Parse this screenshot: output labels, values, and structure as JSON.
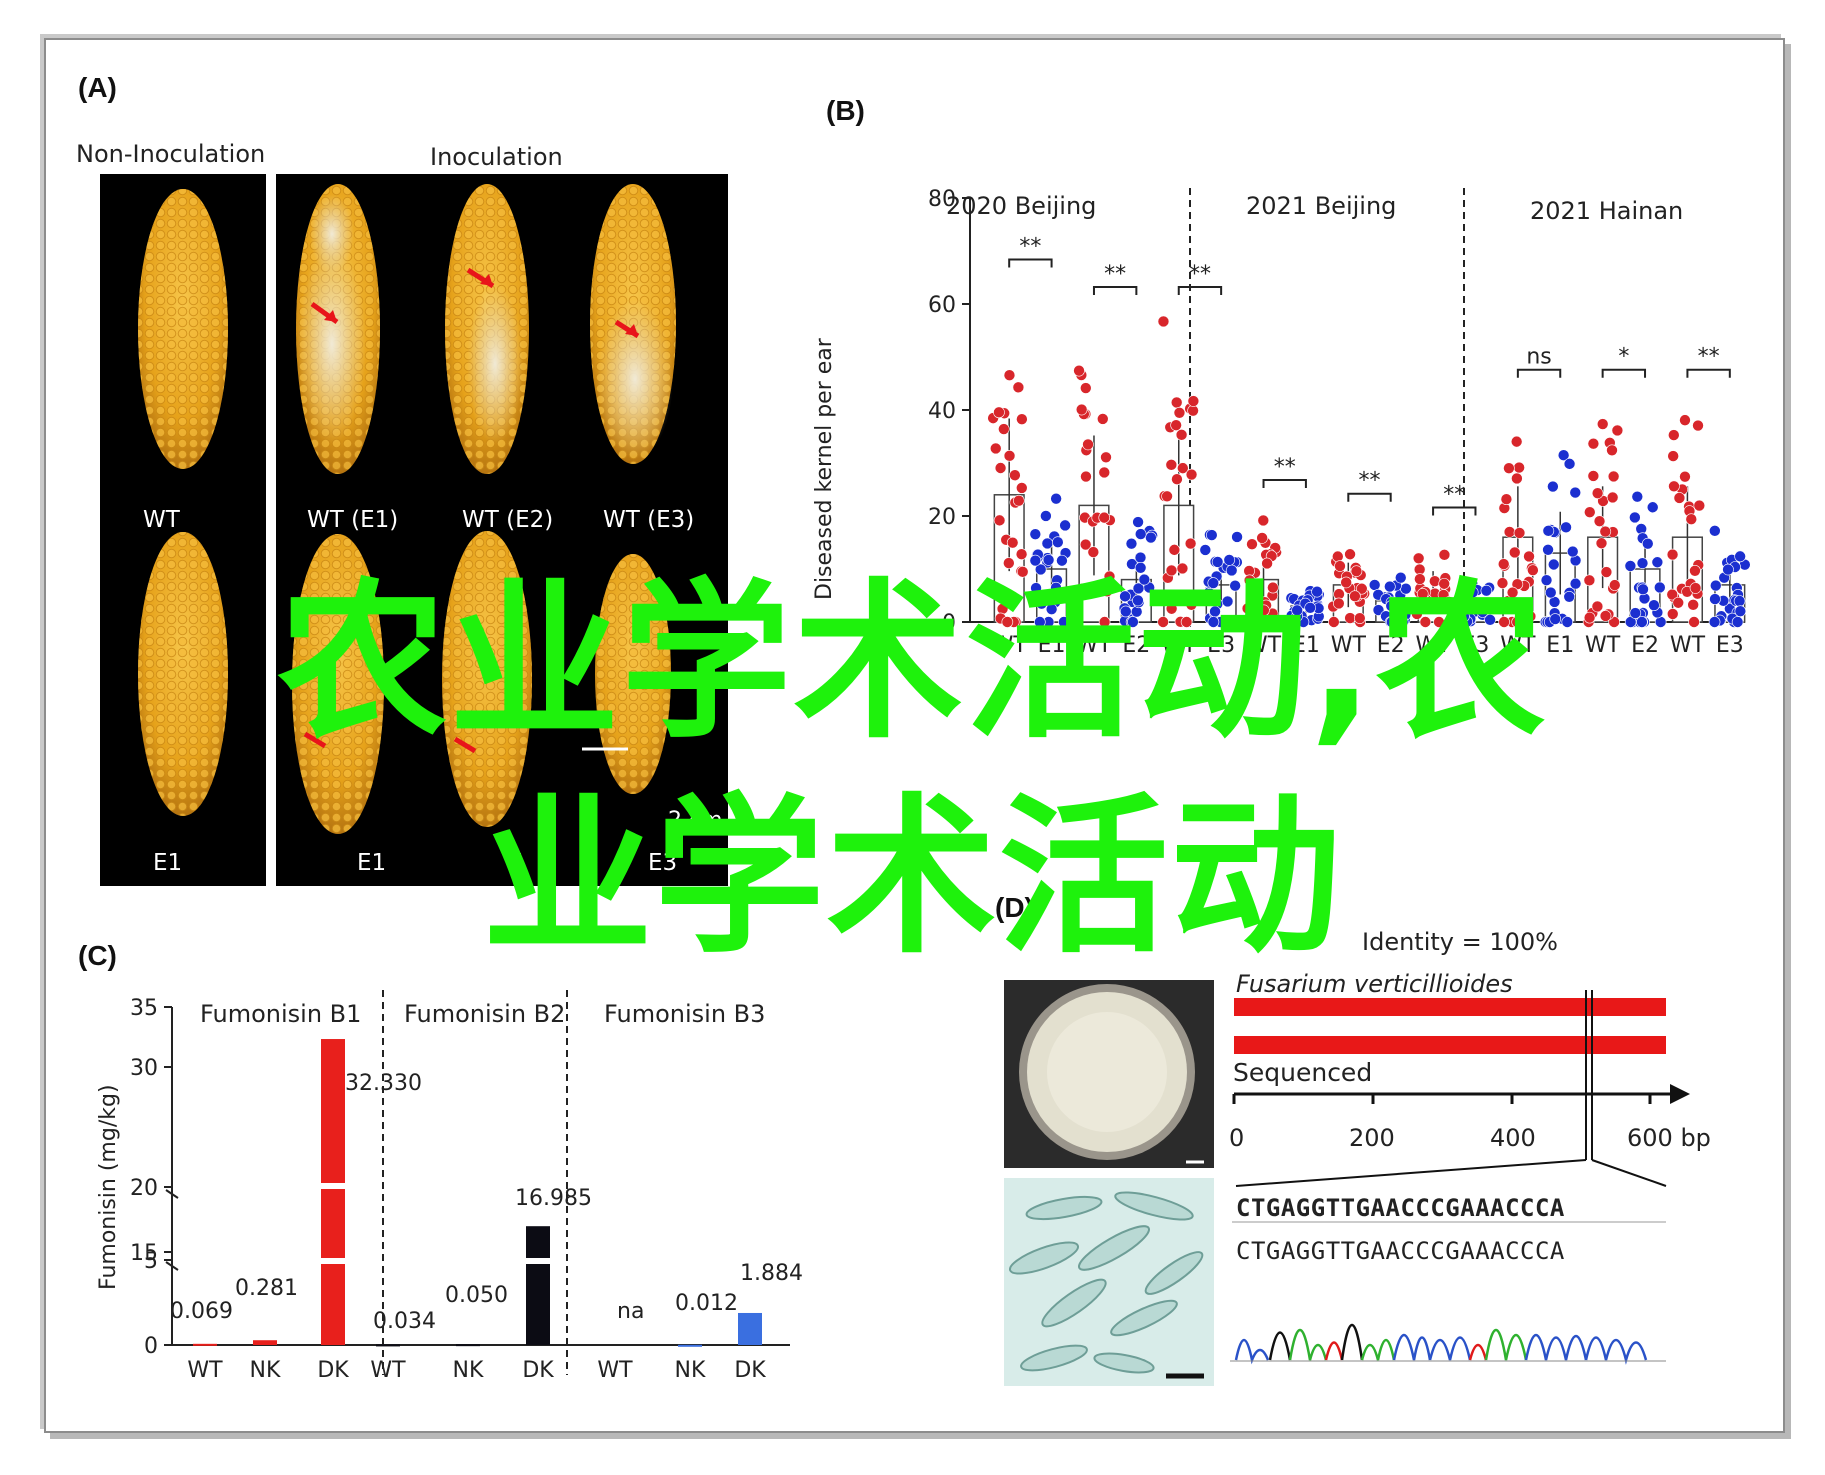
{
  "panels": {
    "a": {
      "letter": "(A)",
      "group_left": "Non-Inoculation",
      "group_right": "Inoculation",
      "top_row_labels": [
        "WT",
        "WT (E1)",
        "WT (E2)",
        "WT (E3)"
      ],
      "bottom_row_labels": [
        "E1",
        "E1",
        "E",
        "E3"
      ],
      "scale_label": "2 cm"
    },
    "b": {
      "letter": "(B)",
      "ylabel": "Diseased kernel per ear",
      "yticks": [
        "0",
        "20",
        "40",
        "60",
        "80"
      ],
      "groups": [
        "2020 Beijing",
        "2021 Beijing",
        "2021 Hainan"
      ],
      "xticks": [
        "WT",
        "E1",
        "WT",
        "E2",
        "WT",
        "E3",
        "WT",
        "E1",
        "WT",
        "E2",
        "WT",
        "E3",
        "WT",
        "E1",
        "WT",
        "E2",
        "WT",
        "E3"
      ],
      "significance": [
        "**",
        "**",
        "**",
        "**",
        "**",
        "**",
        "ns",
        "*",
        "**"
      ]
    },
    "c": {
      "letter": "(C)",
      "ylabel": "Fumonisin (mg/kg)",
      "yticks": [
        "0",
        "5",
        "15",
        "20",
        "30",
        "35"
      ],
      "groups": [
        "Fumonisin B1",
        "Fumonisin B2",
        "Fumonisin B3"
      ],
      "xticks": [
        "WT",
        "NK",
        "DK",
        "WT",
        "NK",
        "DK",
        "WT",
        "NK",
        "DK"
      ],
      "value_labels": [
        "0.069",
        "0.281",
        "32.330",
        "0.034",
        "0.050",
        "16.985",
        "na",
        "0.012",
        "1.884"
      ]
    },
    "d": {
      "letter": "(D)",
      "identity": "Identity = 100%",
      "species": "Fusarium verticillioides",
      "sequenced": "Sequenced",
      "axis_ticks": [
        "0",
        "200",
        "400",
        "600 bp"
      ],
      "seq_ref": "CTGAGGTTGAACCCGAAACCCA",
      "seq_query": "CTGAGGTTGAACCCGAAACCCA"
    }
  },
  "overlay": {
    "line1": "农业学术活动,农",
    "line2": "业学术活动"
  },
  "chart_data": [
    {
      "type": "scatter",
      "title": "",
      "ylabel": "Diseased kernel per ear",
      "ylim": [
        0,
        80
      ],
      "groups": [
        "2020 Beijing",
        "2021 Beijing",
        "2021 Hainan"
      ],
      "categories": [
        "WT",
        "E1",
        "WT",
        "E2",
        "WT",
        "E3",
        "WT",
        "E1",
        "WT",
        "E2",
        "WT",
        "E3",
        "WT",
        "E1",
        "WT",
        "E2",
        "WT",
        "E3"
      ],
      "series": [
        {
          "values": [
            24,
            10,
            22,
            8,
            22,
            7,
            8,
            3,
            7,
            4,
            6,
            3,
            16,
            13,
            16,
            10,
            16,
            7
          ]
        }
      ],
      "significance": [
        "**",
        "**",
        "**",
        "**",
        "**",
        "**",
        "ns",
        "*",
        "**"
      ],
      "colors": {
        "WT": "#d8262b",
        "mutant": "#1b2fd0"
      }
    },
    {
      "type": "bar",
      "title": "",
      "ylabel": "Fumonisin (mg/kg)",
      "ylim": [
        0,
        35
      ],
      "groups": [
        "Fumonisin B1",
        "Fumonisin B2",
        "Fumonisin B3"
      ],
      "categories": [
        "WT",
        "NK",
        "DK",
        "WT",
        "NK",
        "DK",
        "WT",
        "NK",
        "DK"
      ],
      "values": [
        0.069,
        0.281,
        32.33,
        0.034,
        0.05,
        16.985,
        null,
        0.012,
        1.884
      ],
      "colors": {
        "B1": "#e8201c",
        "B2": "#0c0c14",
        "B3": "#3a6fe0"
      }
    }
  ]
}
